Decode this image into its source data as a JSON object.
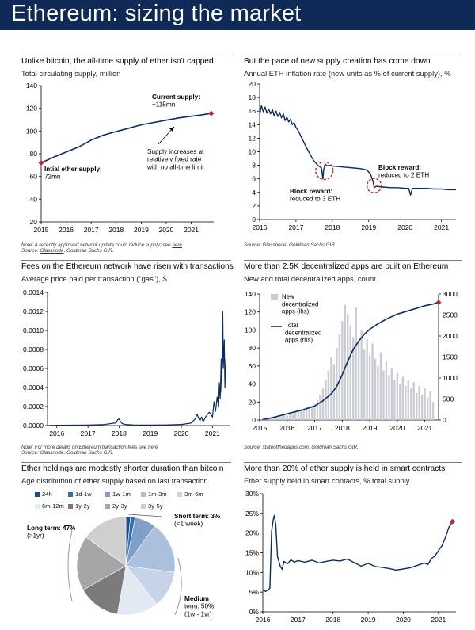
{
  "header": {
    "title": "Ethereum: sizing the market"
  },
  "colors": {
    "header_bg": "#0f2a57",
    "line": "#0d2b5b",
    "marker": "#c0282d",
    "bars": "#c9ccd4",
    "annotation_circle": "#c0282d"
  },
  "panels": {
    "supply": {
      "title": "Unlike bitcoin, the all-time supply of ether isn't capped",
      "subtitle": "Total circulating supply, million",
      "note_prefix": "Note: A recently approved network update could reduce supply; see ",
      "note_link": "here",
      "source_prefix": "Source: ",
      "source_link": "Glassnode",
      "source_rest": ", Goldman Sachs GIR.",
      "ann_current_1": "Current supply:",
      "ann_current_2": "~115mn",
      "ann_initial_1": "Intial ether supply:",
      "ann_initial_2": "72mn",
      "ann_rate_1": "Supply increases at",
      "ann_rate_2": "relatively fixed rate",
      "ann_rate_3": "with no all-time limit"
    },
    "inflation": {
      "title": "But the pace of new supply creation has come down",
      "subtitle": "Annual ETH inflation rate (new units as % of current supply), %",
      "source": "Source: Glassnode, Goldman Sachs GIR.",
      "ann_3eth_1": "Block reward:",
      "ann_3eth_2": "reduced to 3 ETH",
      "ann_2eth_1": "Block reward:",
      "ann_2eth_2": "reduced to 2 ETH"
    },
    "fees": {
      "title": "Fees on the Ethereum network have risen with transactions",
      "subtitle": "Average price paid per transaction (\"gas\"), $",
      "note": "Note: For more details on Ethereum transaction fees see here",
      "source": "Source: Glassnode, Goldman Sachs GIR."
    },
    "dapps": {
      "title": "More than 2.5K decentralized apps are built on Ethereum",
      "subtitle": "New and total decentralized apps, count",
      "source": "Source: stateofthedapps.com, Goldman Sachs GIR.",
      "legend_new_1": "New",
      "legend_new_2": "decentralized",
      "legend_new_3": "apps (lhs)",
      "legend_total_1": "Total",
      "legend_total_2": "decentralized",
      "legend_total_3": "apps (rhs)"
    },
    "age": {
      "title": "Ether holdings are modestly shorter duration than bitcoin",
      "subtitle": "Age distribution of ether supply based on last transaction",
      "ann_short_1": "Short term: 3%",
      "ann_short_2": "(<1 week)",
      "ann_long_1": "Long term: 47%",
      "ann_long_2": "(>1yr)",
      "ann_medium_1": "Medium",
      "ann_medium_2": "term: 50%",
      "ann_medium_3": "(1w - 1yr)"
    },
    "contracts": {
      "title": "More than 20% of ether supply is held in smart contracts",
      "subtitle": "Ether supply held in smart contacts, % total supply"
    }
  },
  "chart_data": [
    {
      "id": "supply",
      "type": "line",
      "title": "Unlike bitcoin, the all-time supply of ether isn't capped",
      "ylabel": "Total circulating supply, million",
      "x_ticks": [
        "2015",
        "2016",
        "2017",
        "2018",
        "2019",
        "2020",
        "2021"
      ],
      "xlim": [
        2015,
        2021.9
      ],
      "ylim": [
        20,
        140
      ],
      "y_ticks": [
        20,
        40,
        60,
        80,
        100,
        120,
        140
      ],
      "x": [
        2015.0,
        2015.5,
        2016.0,
        2016.5,
        2017.0,
        2017.5,
        2018.0,
        2018.5,
        2019.0,
        2019.5,
        2020.0,
        2020.5,
        2021.0,
        2021.5,
        2021.8
      ],
      "y": [
        72,
        77,
        81.5,
        86,
        92,
        96.5,
        99.5,
        102.5,
        105.5,
        107.5,
        109.5,
        111.5,
        113,
        114.5,
        115.5
      ],
      "endpoint_markers": true
    },
    {
      "id": "inflation",
      "type": "line",
      "title": "But the pace of new supply creation has come down",
      "ylabel": "Annual ETH inflation rate (new units as % of current supply), %",
      "x_ticks": [
        "2016",
        "2017",
        "2018",
        "2019",
        "2020",
        "2021"
      ],
      "xlim": [
        2016,
        2021.4
      ],
      "ylim": [
        0,
        20
      ],
      "y_ticks": [
        0,
        2,
        4,
        6,
        8,
        10,
        12,
        14,
        16,
        18,
        20
      ],
      "x": [
        2016.0,
        2016.05,
        2016.1,
        2016.15,
        2016.2,
        2016.25,
        2016.3,
        2016.35,
        2016.4,
        2016.45,
        2016.5,
        2016.55,
        2016.6,
        2016.65,
        2016.7,
        2016.75,
        2016.8,
        2016.85,
        2016.9,
        2016.95,
        2017.0,
        2017.05,
        2017.1,
        2017.15,
        2017.2,
        2017.25,
        2017.3,
        2017.35,
        2017.4,
        2017.45,
        2017.5,
        2017.55,
        2017.6,
        2017.65,
        2017.7,
        2017.74,
        2017.76,
        2017.8,
        2017.85,
        2017.9,
        2018.0,
        2018.2,
        2018.4,
        2018.6,
        2018.8,
        2018.95,
        2019.05,
        2019.12,
        2019.15,
        2019.2,
        2019.4,
        2019.6,
        2019.8,
        2020.0,
        2020.1,
        2020.15,
        2020.2,
        2020.4,
        2020.6,
        2020.8,
        2021.0,
        2021.2,
        2021.4
      ],
      "y": [
        15.5,
        16.8,
        15.9,
        16.6,
        15.7,
        16.3,
        15.6,
        16.2,
        15.3,
        16.0,
        15.2,
        15.8,
        15.0,
        15.6,
        14.6,
        15.1,
        14.4,
        14.8,
        14.0,
        14.3,
        13.6,
        13.2,
        12.7,
        12.1,
        11.6,
        11.0,
        10.5,
        10.0,
        9.5,
        9.0,
        8.6,
        8.3,
        8.0,
        7.8,
        7.6,
        6.0,
        7.3,
        8.2,
        7.9,
        8.0,
        7.9,
        7.8,
        7.7,
        7.6,
        7.5,
        7.3,
        6.7,
        5.6,
        4.7,
        4.9,
        4.8,
        4.7,
        4.7,
        4.6,
        4.6,
        3.6,
        4.6,
        4.6,
        4.6,
        4.5,
        4.5,
        4.4,
        4.4
      ],
      "annotations": [
        "Block reward: reduced to 3 ETH",
        "Block reward: reduced to 2 ETH"
      ]
    },
    {
      "id": "fees",
      "type": "line",
      "title": "Fees on the Ethereum network have risen with transactions",
      "ylabel": "Average price paid per transaction (\"gas\"), $",
      "x_ticks": [
        "2016",
        "2017",
        "2018",
        "2019",
        "2020",
        "2021"
      ],
      "xlim": [
        2015.7,
        2021.55
      ],
      "ylim": [
        0,
        0.0014
      ],
      "y_ticks": [
        0.0,
        0.0002,
        0.0004,
        0.0006,
        0.0008,
        0.001,
        0.0012,
        0.0014
      ],
      "y_tick_labels": [
        "0.0000",
        "0.0002",
        "0.0004",
        "0.0006",
        "0.0008",
        "0.0010",
        "0.0012",
        "0.0014"
      ],
      "x": [
        2015.7,
        2016.0,
        2016.5,
        2017.0,
        2017.5,
        2017.9,
        2017.95,
        2018.0,
        2018.05,
        2018.1,
        2018.2,
        2018.5,
        2019.0,
        2019.5,
        2020.0,
        2020.3,
        2020.45,
        2020.5,
        2020.6,
        2020.65,
        2020.7,
        2020.8,
        2020.9,
        2021.0,
        2021.05,
        2021.1,
        2021.15,
        2021.2,
        2021.22,
        2021.25,
        2021.28,
        2021.3,
        2021.33,
        2021.35,
        2021.38,
        2021.4,
        2021.43
      ],
      "y": [
        0.0,
        3e-06,
        4e-06,
        6e-06,
        1e-05,
        2.8e-05,
        6e-05,
        7e-05,
        4e-05,
        2e-05,
        1.2e-05,
        6e-06,
        5e-06,
        7e-06,
        1.2e-05,
        2.5e-05,
        7e-05,
        0.00012,
        5e-05,
        9e-05,
        4e-05,
        0.0001,
        0.00014,
        9e-05,
        0.00025,
        0.00015,
        0.0003,
        0.0002,
        0.00045,
        0.00028,
        0.0007,
        0.00035,
        0.0012,
        0.0006,
        0.0009,
        0.0004,
        0.0007
      ]
    },
    {
      "id": "dapps",
      "type": "bar",
      "title": "More than 2.5K decentralized apps are built on Ethereum",
      "ylabel": "New and total decentralized apps, count",
      "x_ticks": [
        "2015",
        "2016",
        "2017",
        "2018",
        "2019",
        "2020",
        "2021"
      ],
      "xlim": [
        2015,
        2021.5
      ],
      "y_left_lim": [
        0,
        140
      ],
      "y_left_ticks": [
        0,
        20,
        40,
        60,
        80,
        100,
        120,
        140
      ],
      "y_right_lim": [
        0,
        3000
      ],
      "y_right_ticks": [
        0,
        500,
        1000,
        1500,
        2000,
        2500,
        3000
      ],
      "series": [
        {
          "name": "New decentralized apps (lhs)",
          "kind": "bar",
          "x": [
            2015.1,
            2015.2,
            2015.3,
            2015.4,
            2015.5,
            2015.6,
            2015.7,
            2015.8,
            2015.9,
            2016.0,
            2016.1,
            2016.2,
            2016.3,
            2016.4,
            2016.5,
            2016.6,
            2016.7,
            2016.8,
            2016.9,
            2017.0,
            2017.1,
            2017.2,
            2017.3,
            2017.4,
            2017.5,
            2017.6,
            2017.7,
            2017.8,
            2017.9,
            2018.0,
            2018.1,
            2018.2,
            2018.3,
            2018.4,
            2018.5,
            2018.6,
            2018.7,
            2018.8,
            2018.9,
            2019.0,
            2019.1,
            2019.2,
            2019.3,
            2019.4,
            2019.5,
            2019.6,
            2019.7,
            2019.8,
            2019.9,
            2020.0,
            2020.1,
            2020.2,
            2020.3,
            2020.4,
            2020.5,
            2020.6,
            2020.7,
            2020.8,
            2020.9,
            2021.0,
            2021.1,
            2021.2,
            2021.3
          ],
          "values": [
            1,
            2,
            3,
            2,
            4,
            3,
            5,
            4,
            6,
            5,
            8,
            7,
            10,
            9,
            12,
            11,
            14,
            13,
            16,
            18,
            22,
            28,
            35,
            45,
            55,
            70,
            62,
            80,
            95,
            110,
            128,
            118,
            105,
            92,
            125,
            88,
            100,
            78,
            90,
            72,
            85,
            68,
            60,
            75,
            55,
            65,
            50,
            58,
            45,
            52,
            40,
            48,
            38,
            44,
            35,
            42,
            30,
            38,
            28,
            35,
            25,
            32,
            20
          ]
        },
        {
          "name": "Total decentralized apps (rhs)",
          "kind": "line",
          "x": [
            2015.1,
            2015.5,
            2016.0,
            2016.5,
            2017.0,
            2017.3,
            2017.6,
            2017.8,
            2018.0,
            2018.2,
            2018.4,
            2018.6,
            2018.8,
            2019.0,
            2019.3,
            2019.6,
            2020.0,
            2020.4,
            2020.8,
            2021.0,
            2021.3,
            2021.5
          ],
          "values": [
            10,
            60,
            150,
            230,
            330,
            460,
            620,
            800,
            1080,
            1400,
            1680,
            1880,
            2040,
            2160,
            2290,
            2400,
            2520,
            2600,
            2680,
            2720,
            2760,
            2800
          ]
        }
      ]
    },
    {
      "id": "age",
      "type": "pie",
      "title": "Ether holdings are modestly shorter duration than bitcoin",
      "subtitle": "Age distribution of ether supply based on last transaction",
      "categories": [
        "24h",
        "1d-1w",
        "1w-1m",
        "1m-3m",
        "3m-6m",
        "6m-12m",
        "1y-2y",
        "2y-3y",
        "3y-5y"
      ],
      "colors": [
        "#1f4e8c",
        "#2f6fae",
        "#7f9fc8",
        "#aac0dd",
        "#c7d3e6",
        "#e3e9f2",
        "#7b7b7b",
        "#a6a6a6",
        "#cfcfcf"
      ],
      "values": [
        1.5,
        1.5,
        7,
        17,
        12,
        13.5,
        14,
        18,
        15
      ],
      "annotations": [
        "Short term: 3% (<1 week)",
        "Long term: 47% (>1yr)",
        "Medium term: 50% (1w - 1yr)"
      ]
    },
    {
      "id": "contracts",
      "type": "line",
      "title": "More than 20% of ether supply is held in smart contracts",
      "ylabel": "Ether supply held in smart contacts, % total supply",
      "x_ticks": [
        "2016",
        "2017",
        "2018",
        "2019",
        "2020",
        "2021"
      ],
      "xlim": [
        2016,
        2021.5
      ],
      "ylim": [
        0,
        30
      ],
      "y_ticks": [
        0,
        5,
        10,
        15,
        20,
        25,
        30
      ],
      "y_tick_labels": [
        "0%",
        "5%",
        "10%",
        "15%",
        "20%",
        "25%",
        "30%"
      ],
      "x": [
        2016.0,
        2016.08,
        2016.15,
        2016.2,
        2016.25,
        2016.3,
        2016.33,
        2016.37,
        2016.42,
        2016.5,
        2016.55,
        2016.6,
        2016.7,
        2016.8,
        2016.9,
        2017.0,
        2017.2,
        2017.4,
        2017.6,
        2017.8,
        2018.0,
        2018.2,
        2018.4,
        2018.6,
        2018.8,
        2019.0,
        2019.2,
        2019.4,
        2019.6,
        2019.8,
        2020.0,
        2020.2,
        2020.4,
        2020.6,
        2020.7,
        2020.8,
        2020.9,
        2021.0,
        2021.1,
        2021.2,
        2021.3,
        2021.4
      ],
      "y": [
        5.5,
        5.2,
        5.6,
        6.0,
        20.5,
        23.5,
        24.5,
        22.0,
        14.0,
        11.5,
        10.8,
        12.8,
        12.2,
        13.2,
        12.6,
        13.0,
        12.6,
        13.1,
        12.4,
        12.8,
        13.1,
        12.9,
        13.4,
        12.5,
        11.6,
        12.3,
        11.5,
        11.3,
        11.0,
        10.6,
        10.9,
        11.2,
        11.8,
        12.4,
        12.0,
        13.5,
        14.2,
        15.5,
        16.8,
        18.9,
        21.5,
        22.9
      ],
      "endpoint_marker": true
    }
  ]
}
